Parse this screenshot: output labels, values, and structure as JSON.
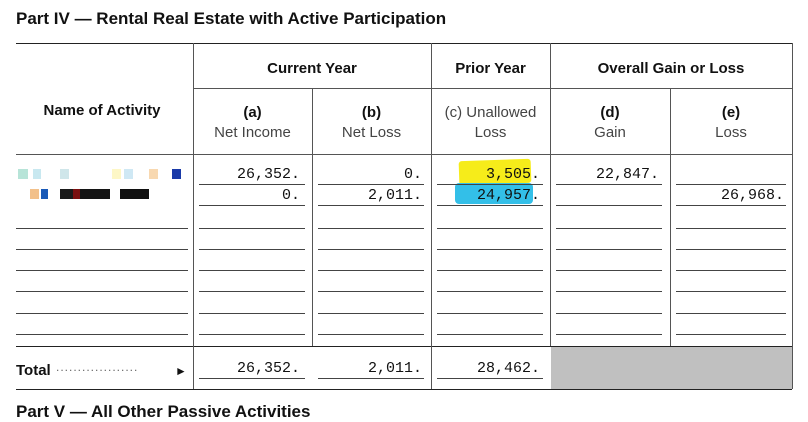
{
  "part_title": "Part IV — Rental Real Estate with Active Participation",
  "headers": {
    "name_col": "Name of Activity",
    "current_year": "Current Year",
    "prior_year": "Prior Year",
    "overall": "Overall Gain or Loss",
    "a_letter": "(a)",
    "a_label": "Net Income",
    "b_letter": "(b)",
    "b_label": "Net Loss",
    "c_line1": "(c) Unallowed",
    "c_line2": "Loss",
    "d_letter": "(d)",
    "d_label": "Gain",
    "e_letter": "(e)",
    "e_label": "Loss"
  },
  "rows": [
    {
      "a": "26,352.",
      "b": "0.",
      "c": "3,505.",
      "d": "22,847.",
      "e": ""
    },
    {
      "a": "0.",
      "b": "2,011.",
      "c": "24,957.",
      "d": "",
      "e": "26,968."
    }
  ],
  "total": {
    "label": "Total",
    "dots": "...................",
    "arrow": "►",
    "a": "26,352.",
    "b": "2,011.",
    "c": "28,462."
  },
  "next_part_title": "Part V — All Other Passive Activities",
  "colors": {
    "highlight_yellow": "#f6ec1a",
    "highlight_blue": "#33bfe8",
    "shade_gray": "#c0c0c0"
  }
}
